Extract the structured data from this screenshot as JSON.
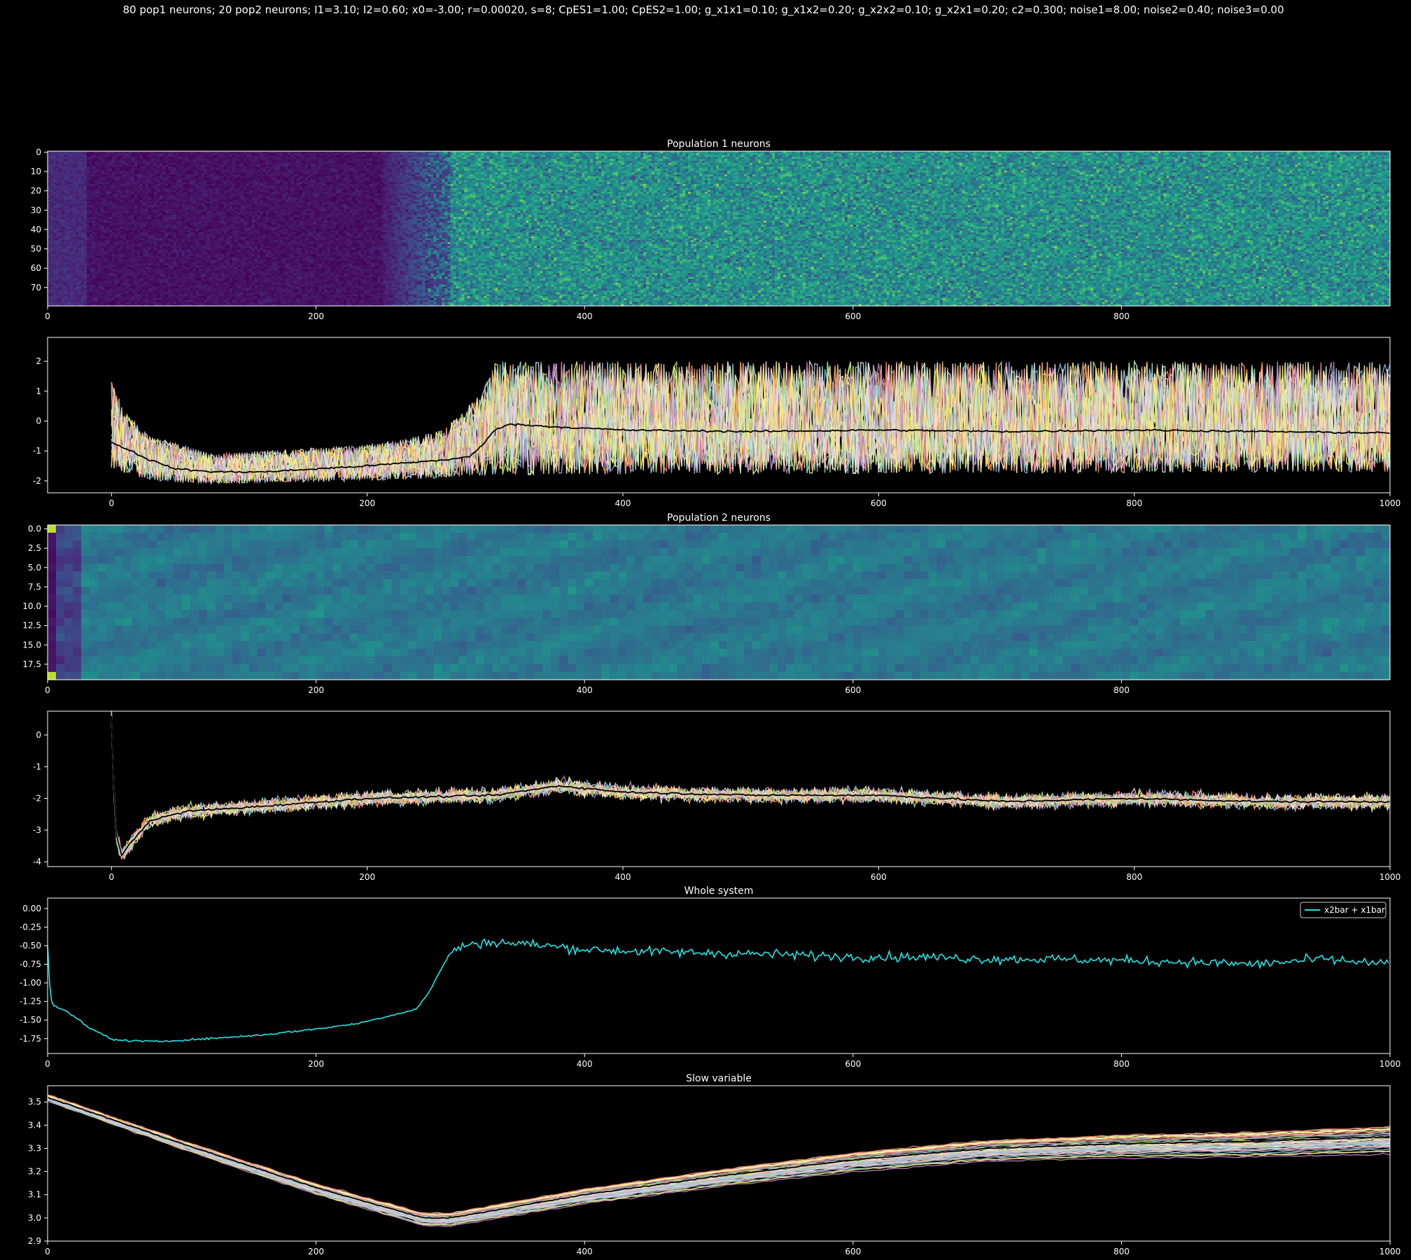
{
  "figure": {
    "suptitle": "80 pop1 neurons; 20 pop2 neurons; I1=3.10; I2=0.60; x0=-3.00; r=0.00020, s=8; CpES1=1.00; CpES2=1.00; g_x1x1=0.10; g_x1x2=0.20; g_x2x2=0.10; g_x2x1=0.20; c2=0.300; noise1=8.00; noise2=0.40; noise3=0.00"
  },
  "chart_data": [
    {
      "id": "pop1-heatmap",
      "type": "heatmap",
      "title": "Population 1 neurons",
      "rows": 80,
      "xlim": [
        0,
        1000
      ],
      "ylim": [
        80,
        0
      ],
      "xticks": [
        0,
        200,
        400,
        600,
        800
      ],
      "yticks": [
        0,
        10,
        20,
        30,
        40,
        50,
        60,
        70
      ],
      "ytick_labels": [
        "0",
        "10",
        "20",
        "30",
        "40",
        "50",
        "60",
        "70"
      ],
      "colormap": "viridis",
      "regimes": [
        {
          "x_start": 0,
          "x_end": 30,
          "level": 0.12
        },
        {
          "x_start": 30,
          "x_end": 250,
          "level": 0.05
        },
        {
          "x_start": 250,
          "x_end": 295,
          "level": 0.15
        },
        {
          "x_start": 295,
          "x_end": 1000,
          "level": 0.5
        }
      ]
    },
    {
      "id": "pop1-traces",
      "type": "line",
      "title": "",
      "xlim": [
        -50,
        1000
      ],
      "ylim": [
        -2.4,
        2.8
      ],
      "xticks": [
        0,
        200,
        400,
        600,
        800,
        1000
      ],
      "yticks": [
        -2,
        -1,
        0,
        1,
        2
      ],
      "mean_color": "#000000",
      "mean": {
        "x": [
          0,
          10,
          30,
          50,
          80,
          120,
          200,
          260,
          280,
          290,
          300,
          310,
          350,
          400,
          500,
          600,
          700,
          800,
          900,
          1000
        ],
        "y": [
          -0.7,
          -0.9,
          -1.3,
          -1.6,
          -1.7,
          -1.7,
          -1.5,
          -1.3,
          -1.2,
          -0.8,
          -0.3,
          -0.1,
          -0.2,
          -0.3,
          -0.35,
          -0.3,
          -0.35,
          -0.3,
          -0.35,
          -0.4
        ]
      },
      "band_low": {
        "x": [
          0,
          30,
          80,
          200,
          260,
          300,
          1000
        ],
        "y": [
          -1.6,
          -2.0,
          -2.1,
          -2.0,
          -1.9,
          -1.8,
          -1.7
        ]
      },
      "band_high": {
        "x": [
          0,
          10,
          30,
          80,
          200,
          260,
          290,
          300,
          1000
        ],
        "y": [
          1.5,
          0.3,
          -0.5,
          -1.1,
          -0.8,
          -0.3,
          1.0,
          2.0,
          2.0
        ]
      },
      "series_count": 24
    },
    {
      "id": "pop2-heatmap",
      "type": "heatmap",
      "title": "Population 2 neurons",
      "rows": 20,
      "xlim": [
        0,
        1000
      ],
      "ylim": [
        20,
        0
      ],
      "xticks": [
        0,
        200,
        400,
        600,
        800
      ],
      "yticks": [
        0,
        2.5,
        5,
        7.5,
        10,
        12.5,
        15,
        17.5
      ],
      "ytick_labels": [
        "0.0",
        "2.5",
        "5.0",
        "7.5",
        "10.0",
        "12.5",
        "15.0",
        "17.5"
      ],
      "colormap": "viridis",
      "regimes": [
        {
          "x_start": 0,
          "x_end": 5,
          "level": 0.0
        },
        {
          "x_start": 5,
          "x_end": 25,
          "level": 0.2
        },
        {
          "x_start": 25,
          "x_end": 1000,
          "level": 0.4
        }
      ]
    },
    {
      "id": "pop2-traces",
      "type": "line",
      "title": "",
      "xlim": [
        -50,
        1000
      ],
      "ylim": [
        -4.15,
        0.75
      ],
      "xticks": [
        0,
        200,
        400,
        600,
        800,
        1000
      ],
      "yticks": [
        -4,
        -3,
        -2,
        -1,
        0
      ],
      "mean_color": "#000000",
      "mean": {
        "x": [
          0,
          3,
          8,
          15,
          30,
          60,
          100,
          200,
          300,
          350,
          400,
          500,
          600,
          700,
          800,
          900,
          1000
        ],
        "y": [
          0.6,
          -3.0,
          -3.8,
          -3.4,
          -2.7,
          -2.4,
          -2.3,
          -2.0,
          -1.9,
          -1.6,
          -1.8,
          -1.9,
          -1.9,
          -2.1,
          -2.0,
          -2.1,
          -2.1
        ]
      },
      "spread": 0.3,
      "series_count": 20
    },
    {
      "id": "whole-system",
      "type": "line",
      "title": "Whole system",
      "xlim": [
        0,
        1000
      ],
      "ylim": [
        -1.95,
        0.14
      ],
      "xticks": [
        0,
        200,
        400,
        600,
        800,
        1000
      ],
      "yticks": [
        0.0,
        -0.25,
        -0.5,
        -0.75,
        -1.0,
        -1.25,
        -1.5,
        -1.75
      ],
      "ytick_labels": [
        "0.00",
        "-0.25",
        "-0.50",
        "-0.75",
        "-1.00",
        "-1.25",
        "-1.50",
        "-1.75"
      ],
      "legend_position": "top-right",
      "series": [
        {
          "name": "x2bar + x1bar",
          "color": "#22e5e5",
          "x": [
            0,
            2,
            5,
            10,
            20,
            30,
            50,
            80,
            120,
            160,
            200,
            230,
            260,
            275,
            285,
            295,
            300,
            310,
            330,
            360,
            400,
            450,
            500,
            550,
            600,
            650,
            700,
            750,
            800,
            850,
            900,
            950,
            1000
          ],
          "y": [
            -0.5,
            -1.2,
            -1.32,
            -1.35,
            -1.45,
            -1.6,
            -1.77,
            -1.79,
            -1.75,
            -1.7,
            -1.62,
            -1.55,
            -1.42,
            -1.35,
            -1.1,
            -0.75,
            -0.6,
            -0.5,
            -0.45,
            -0.48,
            -0.55,
            -0.58,
            -0.6,
            -0.62,
            -0.65,
            -0.65,
            -0.68,
            -0.68,
            -0.7,
            -0.72,
            -0.75,
            -0.68,
            -0.75
          ]
        }
      ]
    },
    {
      "id": "slow-variable",
      "type": "line",
      "title": "Slow variable",
      "xlim": [
        0,
        1000
      ],
      "ylim": [
        2.9,
        3.57
      ],
      "xticks": [
        0,
        200,
        400,
        600,
        800,
        1000
      ],
      "yticks": [
        2.9,
        3.0,
        3.1,
        3.2,
        3.3,
        3.4,
        3.5
      ],
      "ytick_labels": [
        "2.9",
        "3.0",
        "3.1",
        "3.2",
        "3.3",
        "3.4",
        "3.5"
      ],
      "mean_color": "#000000",
      "mean": {
        "x": [
          0,
          100,
          200,
          280,
          300,
          400,
          500,
          600,
          700,
          800,
          900,
          1000
        ],
        "y": [
          3.52,
          3.32,
          3.13,
          3.0,
          3.0,
          3.1,
          3.18,
          3.25,
          3.3,
          3.32,
          3.33,
          3.35
        ]
      },
      "spread": 0.05,
      "series_count": 40
    }
  ]
}
